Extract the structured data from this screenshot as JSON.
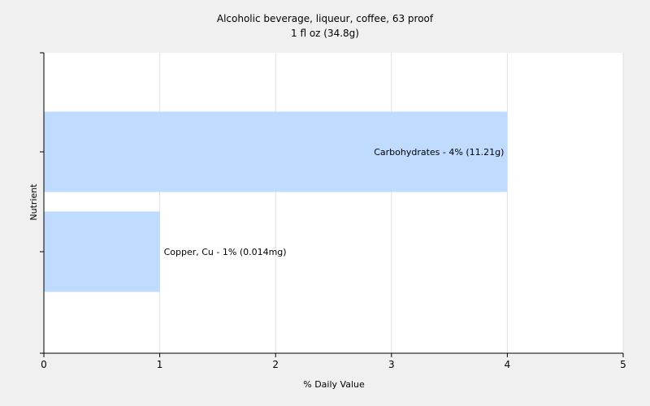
{
  "chart_data": {
    "type": "bar",
    "orientation": "horizontal",
    "title": "Alcoholic beverage, liqueur, coffee, 63 proof",
    "subtitle": "1 fl oz (34.8g)",
    "xlabel": "% Daily Value",
    "ylabel": "Nutrient",
    "xlim": [
      0,
      5
    ],
    "xticks": [
      0,
      1,
      2,
      3,
      4,
      5
    ],
    "grid": true,
    "bar_color": "#bfdbff",
    "categories": [
      "Carbohydrates",
      "Copper, Cu"
    ],
    "values": [
      4,
      1
    ],
    "data_labels": [
      "Carbohydrates - 4% (11.21g)",
      "Copper, Cu - 1% (0.014mg)"
    ]
  }
}
